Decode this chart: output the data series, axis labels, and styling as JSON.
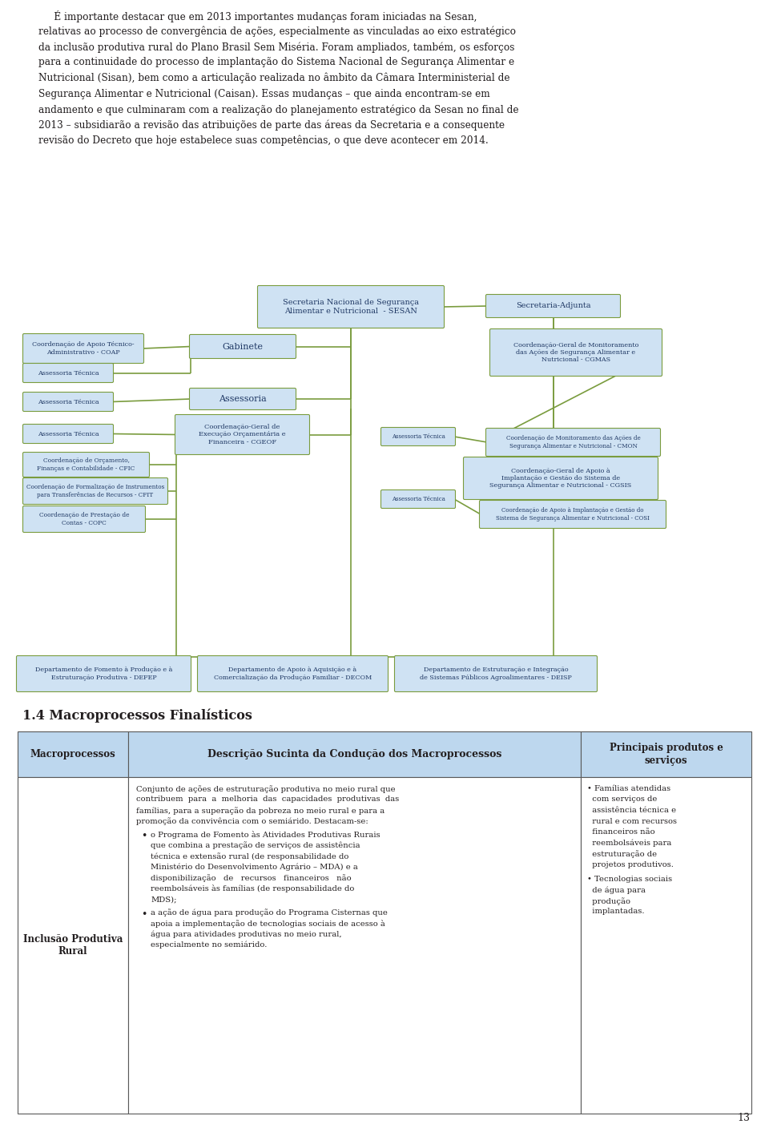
{
  "bg_color": "#ffffff",
  "text_color": "#231f20",
  "page_number": "13",
  "box_fill": "#cfe2f3",
  "box_edge": "#7a9c3e",
  "box_text": "#1f3864",
  "line_color": "#7a9c3e",
  "table_header_fill": "#bdd7ee",
  "table_border": "#595959",
  "table_text": "#231f20",
  "intro_lines": [
    "     É importante destacar que em 2013 importantes mudanças foram iniciadas na Sesan,",
    "relativas ao processo de convergência de ações, especialmente as vinculadas ao eixo estratégico",
    "da inclusão produtiva rural do Plano Brasil Sem Miséria. Foram ampliados, também, os esforços",
    "para a continuidade do processo de implantação do Sistema Nacional de Segurança Alimentar e",
    "Nutricional (Sisan), bem como a articulação realizada no âmbito da Câmara Interministerial de",
    "Segurança Alimentar e Nutricional (Caisan). Essas mudanças – que ainda encontram-se em",
    "andamento e que culminaram com a realização do planejamento estratégico da Sesan no final de",
    "2013 – subsidiarão a revisão das atribuições de parte das áreas da Secretaria e a consequente",
    "revisão do Decreto que hoje estabelece suas competências, o que deve acontecer em 2014."
  ],
  "section_title": "1.4 Macroprocessos Finalísticos"
}
